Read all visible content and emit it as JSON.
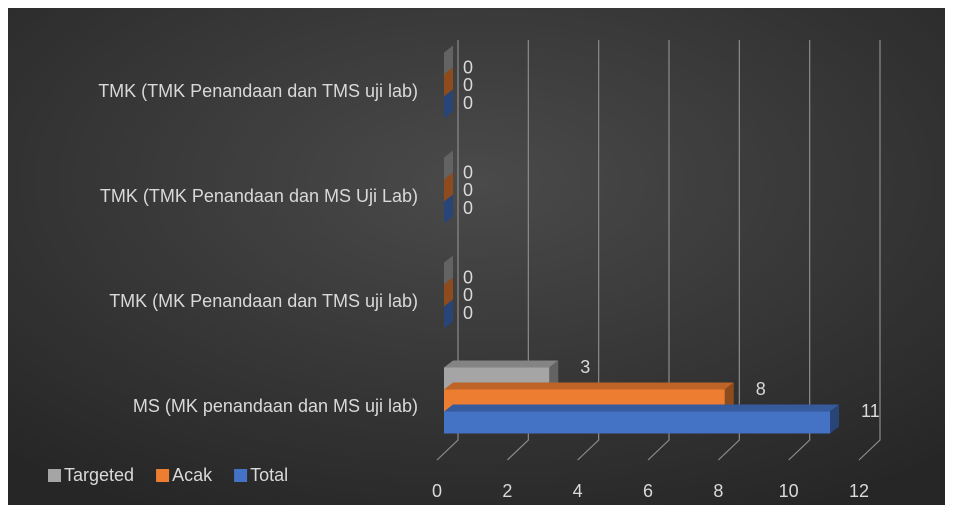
{
  "chart_data": {
    "type": "bar3d_horizontal",
    "categories": [
      "MS (MK penandaan dan MS uji lab)",
      "TMK (MK Penandaan dan TMS uji lab)",
      "TMK (TMK Penandaan dan MS Uji Lab)",
      "TMK (TMK Penandaan dan TMS uji lab)"
    ],
    "series": [
      {
        "name": "Targeted",
        "color": "#a5a5a5",
        "values": [
          3,
          0,
          0,
          0
        ]
      },
      {
        "name": "Acak",
        "color": "#ed7d31",
        "values": [
          8,
          0,
          0,
          0
        ]
      },
      {
        "name": "Total",
        "color": "#4472c4",
        "values": [
          11,
          0,
          0,
          0
        ]
      }
    ],
    "xlim": [
      0,
      12
    ],
    "xticks": [
      0,
      2,
      4,
      6,
      8,
      10,
      12
    ],
    "grid": true,
    "legend": "bottom-left"
  }
}
